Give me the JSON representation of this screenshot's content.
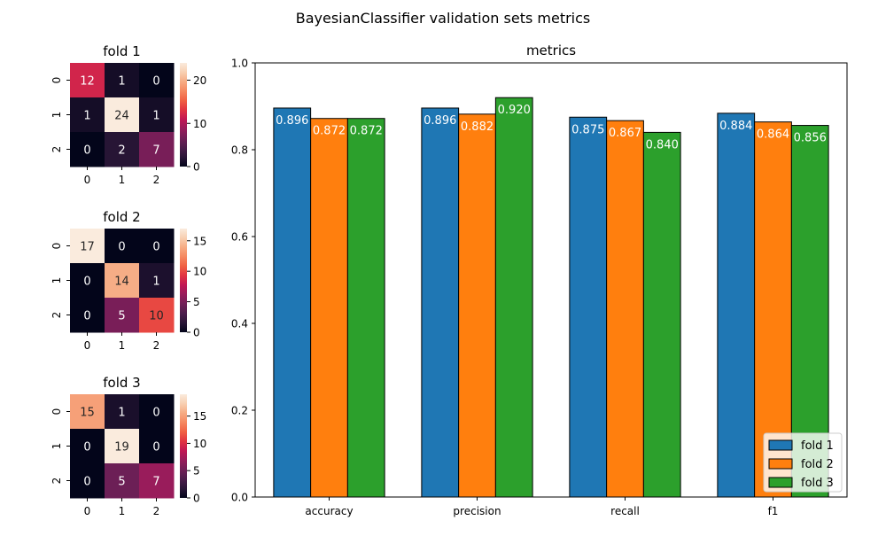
{
  "figure": {
    "suptitle": "BayesianClassifier validation sets metrics"
  },
  "colors": {
    "fold1": "#1f77b4",
    "fold2": "#ff7f0e",
    "fold3": "#2ca02c",
    "rocket": [
      "#03051a",
      "#2a1637",
      "#4c1d4b",
      "#701f57",
      "#971c5b",
      "#c11754",
      "#e13342",
      "#f06043",
      "#f58860",
      "#f6ab83",
      "#f8cfb1",
      "#faebdd"
    ]
  },
  "chart_data": [
    {
      "type": "heatmap",
      "title": "fold 1",
      "x_ticks": [
        "0",
        "1",
        "2"
      ],
      "y_ticks": [
        "0",
        "1",
        "2"
      ],
      "matrix": [
        [
          12,
          1,
          0
        ],
        [
          1,
          24,
          1
        ],
        [
          0,
          2,
          7
        ]
      ],
      "colorbar_ticks": [
        0,
        10,
        20
      ],
      "vmin": 0,
      "vmax": 24
    },
    {
      "type": "heatmap",
      "title": "fold 2",
      "x_ticks": [
        "0",
        "1",
        "2"
      ],
      "y_ticks": [
        "0",
        "1",
        "2"
      ],
      "matrix": [
        [
          17,
          0,
          0
        ],
        [
          0,
          14,
          1
        ],
        [
          0,
          5,
          10
        ]
      ],
      "colorbar_ticks": [
        0,
        5,
        10,
        15
      ],
      "vmin": 0,
      "vmax": 17
    },
    {
      "type": "heatmap",
      "title": "fold 3",
      "x_ticks": [
        "0",
        "1",
        "2"
      ],
      "y_ticks": [
        "0",
        "1",
        "2"
      ],
      "matrix": [
        [
          15,
          1,
          0
        ],
        [
          0,
          19,
          0
        ],
        [
          0,
          5,
          7
        ]
      ],
      "colorbar_ticks": [
        0,
        5,
        10,
        15
      ],
      "vmin": 0,
      "vmax": 19
    },
    {
      "type": "bar",
      "title": "metrics",
      "categories": [
        "accuracy",
        "precision",
        "recall",
        "f1"
      ],
      "series": [
        {
          "name": "fold 1",
          "values": [
            0.896,
            0.896,
            0.875,
            0.884
          ],
          "labels": [
            "0.896",
            "0.896",
            "0.875",
            "0.884"
          ]
        },
        {
          "name": "fold 2",
          "values": [
            0.872,
            0.882,
            0.867,
            0.864
          ],
          "labels": [
            "0.872",
            "0.882",
            "0.867",
            "0.864"
          ]
        },
        {
          "name": "fold 3",
          "values": [
            0.872,
            0.92,
            0.84,
            0.856
          ],
          "labels": [
            "0.872",
            "0.920",
            "0.840",
            "0.856"
          ]
        }
      ],
      "ylim": [
        0,
        1.0
      ],
      "y_ticks": [
        0.0,
        0.2,
        0.4,
        0.6,
        0.8,
        1.0
      ],
      "y_tick_labels": [
        "0.0",
        "0.2",
        "0.4",
        "0.6",
        "0.8",
        "1.0"
      ],
      "legend_position": "lower right",
      "grid": false
    }
  ]
}
